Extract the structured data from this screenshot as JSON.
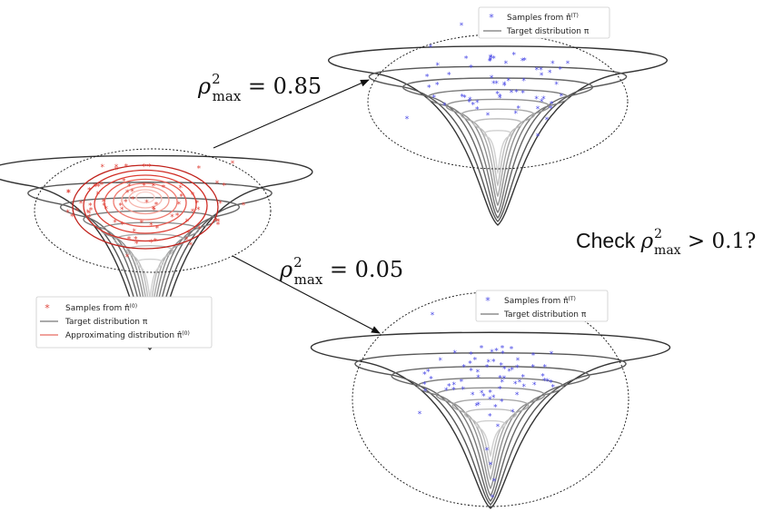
{
  "colors": {
    "target": "#555555",
    "approx": "#e0443a",
    "samples_initial": "#e0443a",
    "samples_final": "#4a4ae6",
    "arrow": "#111111"
  },
  "panels": {
    "initial": {
      "legend": {
        "samples": "Samples from π̂",
        "samples_sup": "(0)",
        "target": "Target distribution π",
        "approx": "Approximating distribution π̂",
        "approx_sup": "(0)"
      }
    },
    "upper": {
      "legend": {
        "samples": "Samples from π̂",
        "samples_sup": "(T)",
        "target": "Target distribution π"
      }
    },
    "lower": {
      "legend": {
        "samples": "Samples from π̂",
        "samples_sup": "(T)",
        "target": "Target distribution π"
      }
    }
  },
  "arrows": {
    "upper": {
      "rho": "ρ",
      "sup": "2",
      "sub": "max",
      "rest": " = 0.85"
    },
    "lower": {
      "rho": "ρ",
      "sup": "2",
      "sub": "max",
      "rest": " = 0.05"
    }
  },
  "check": {
    "word": "Check ",
    "rho": "ρ",
    "sup": "2",
    "sub": "max",
    "rest": " > 0.1?"
  }
}
